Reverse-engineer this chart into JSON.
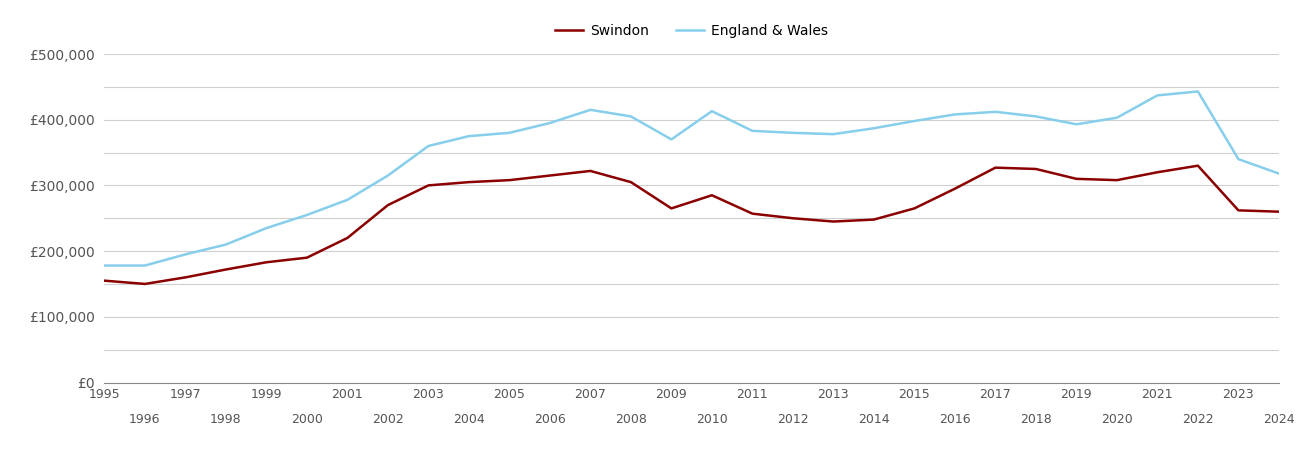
{
  "swindon_years": [
    1995,
    1996,
    1997,
    1998,
    1999,
    2000,
    2001,
    2002,
    2003,
    2004,
    2005,
    2006,
    2007,
    2008,
    2009,
    2010,
    2011,
    2012,
    2013,
    2014,
    2015,
    2016,
    2017,
    2018,
    2019,
    2020,
    2021,
    2022,
    2023,
    2024
  ],
  "swindon_values": [
    155000,
    150000,
    160000,
    172000,
    183000,
    190000,
    220000,
    270000,
    300000,
    305000,
    308000,
    315000,
    322000,
    305000,
    265000,
    285000,
    257000,
    250000,
    245000,
    248000,
    265000,
    295000,
    327000,
    325000,
    310000,
    308000,
    320000,
    330000,
    262000,
    260000
  ],
  "england_years": [
    1995,
    1996,
    1997,
    1998,
    1999,
    2000,
    2001,
    2002,
    2003,
    2004,
    2005,
    2006,
    2007,
    2008,
    2009,
    2010,
    2011,
    2012,
    2013,
    2014,
    2015,
    2016,
    2017,
    2018,
    2019,
    2020,
    2021,
    2022,
    2023,
    2024
  ],
  "england_values": [
    178000,
    178000,
    195000,
    210000,
    235000,
    255000,
    278000,
    315000,
    360000,
    375000,
    380000,
    395000,
    415000,
    405000,
    370000,
    413000,
    383000,
    380000,
    378000,
    387000,
    398000,
    408000,
    412000,
    405000,
    393000,
    403000,
    437000,
    443000,
    340000,
    318000
  ],
  "swindon_color": "#8b0000",
  "england_color": "#87ceeb",
  "background_color": "#ffffff",
  "grid_color": "#d0d0d0",
  "ylim": [
    0,
    500000
  ],
  "ytick_major": [
    0,
    100000,
    200000,
    300000,
    400000,
    500000
  ],
  "ytick_minor": [
    50000,
    150000,
    250000,
    350000,
    450000
  ],
  "ytick_labels": [
    "£0",
    "£100,000",
    "£200,000",
    "£300,000",
    "£400,000",
    "£500,000"
  ],
  "legend_swindon": "Swindon",
  "legend_england": "England & Wales",
  "line_width": 1.8,
  "xlim_left": 1995,
  "xlim_right": 2024
}
